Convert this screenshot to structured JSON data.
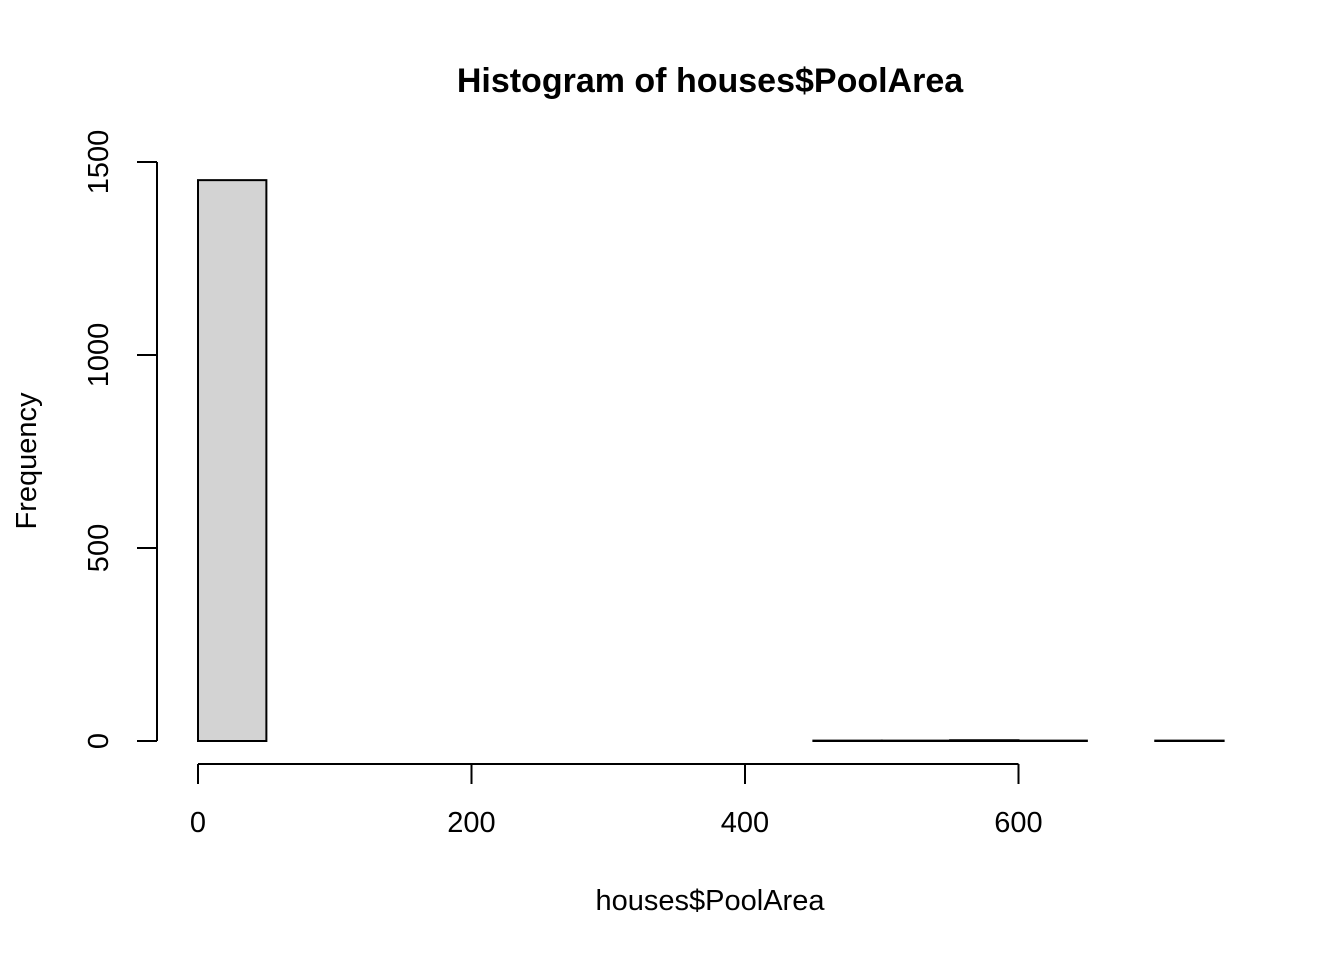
{
  "chart_data": {
    "type": "bar",
    "title": "Histogram of houses$PoolArea",
    "xlabel": "houses$PoolArea",
    "ylabel": "Frequency",
    "bin_edges": [
      0,
      50,
      100,
      150,
      200,
      250,
      300,
      350,
      400,
      450,
      500,
      550,
      600,
      650,
      700,
      750
    ],
    "values": [
      1453,
      0,
      0,
      0,
      0,
      0,
      0,
      0,
      0,
      1,
      1,
      2,
      1,
      0,
      1
    ],
    "xlim": [
      0,
      750
    ],
    "ylim": [
      0,
      1500
    ],
    "x_ticks": [
      0,
      200,
      400,
      600
    ],
    "x_tick_labels": [
      "0",
      "200",
      "400",
      "600"
    ],
    "y_ticks": [
      0,
      500,
      1000,
      1500
    ],
    "y_tick_labels": [
      "0",
      "500",
      "1000",
      "1500"
    ],
    "grid": false,
    "colors": {
      "bar_fill": "#d3d3d3",
      "bar_stroke": "#000000"
    }
  }
}
